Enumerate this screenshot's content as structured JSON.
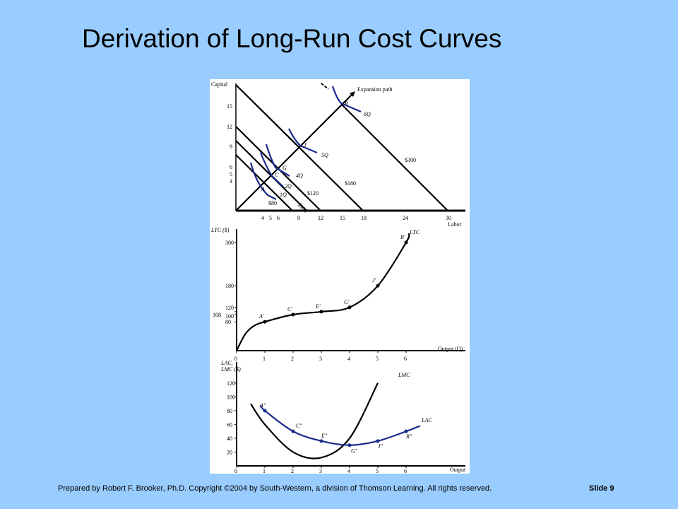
{
  "slide": {
    "title": "Derivation of Long-Run Cost Curves",
    "footer_credit": "Prepared by Robert F. Brooker, Ph.D.   Copyright ©2004 by South-Western, a division of Thomson Learning.  All rights reserved.",
    "slide_number": "Slide 9"
  },
  "colors": {
    "background": "#99ccff",
    "curve_blue": "#1a2a8c",
    "black": "#000000"
  },
  "chart_data": [
    {
      "type": "line",
      "xlabel": "Labor",
      "ylabel": "Capital",
      "x_ticks": [
        "4",
        "5",
        "6",
        "9",
        "12",
        "15",
        "18",
        "24",
        "30"
      ],
      "y_ticks": [
        "4",
        "5",
        "6",
        "9",
        "12",
        "15"
      ],
      "isocost_lines": [
        {
          "label": "$80",
          "intercept": 8
        },
        {
          "label": "$100",
          "intercept": 10
        },
        {
          "label": "$120",
          "intercept": 12
        },
        {
          "label": "$180",
          "intercept": 18
        },
        {
          "label": "$300",
          "intercept": 30
        }
      ],
      "expansion_path": {
        "label": "Expansion path",
        "points": [
          {
            "x": 0,
            "y": 0
          },
          {
            "x": 15,
            "y": 15
          }
        ]
      },
      "isoquants": [
        {
          "label": "1Q",
          "point": "A",
          "x": 4,
          "y": 4
        },
        {
          "label": "2Q",
          "point": "C",
          "x": 5,
          "y": 5
        },
        {
          "label": "4Q",
          "point": "G",
          "x": 6,
          "y": 6
        },
        {
          "label": "5Q",
          "point": "J",
          "x": 9,
          "y": 9
        },
        {
          "label": "6Q",
          "point": "R",
          "x": 15,
          "y": 15
        }
      ]
    },
    {
      "type": "line",
      "xlabel": "Output (Q)",
      "ylabel": "LTC ($)",
      "series_label": "LTC",
      "x_ticks": [
        "0",
        "1",
        "2",
        "3",
        "4",
        "5",
        "6"
      ],
      "y_ticks": [
        "80",
        "100",
        "108",
        "120",
        "180",
        "300"
      ],
      "x": [
        0,
        1,
        2,
        3,
        4,
        5,
        6
      ],
      "y": [
        0,
        80,
        100,
        108,
        120,
        180,
        300
      ],
      "point_labels": [
        "",
        "A′",
        "C′",
        "E′",
        "G′",
        "J′",
        "R′"
      ]
    },
    {
      "type": "line",
      "xlabel": "Output",
      "ylabel_lines": [
        "LAC,",
        "LMC ($)"
      ],
      "x_ticks": [
        "0",
        "1",
        "2",
        "3",
        "4",
        "5",
        "6"
      ],
      "y_ticks": [
        "20",
        "40",
        "60",
        "80",
        "100",
        "120"
      ],
      "series": [
        {
          "name": "LAC",
          "x": [
            1,
            2,
            3,
            4,
            5,
            6
          ],
          "y": [
            80,
            50,
            36,
            30,
            36,
            50
          ],
          "point_labels": [
            "A″",
            "C″",
            "E″",
            "G″",
            "J″",
            "R″"
          ]
        },
        {
          "name": "LMC",
          "x": [
            0.5,
            1,
            2,
            3,
            4,
            5
          ],
          "y": [
            90,
            60,
            20,
            12,
            40,
            120
          ]
        }
      ],
      "ylim": [
        0,
        130
      ]
    }
  ]
}
